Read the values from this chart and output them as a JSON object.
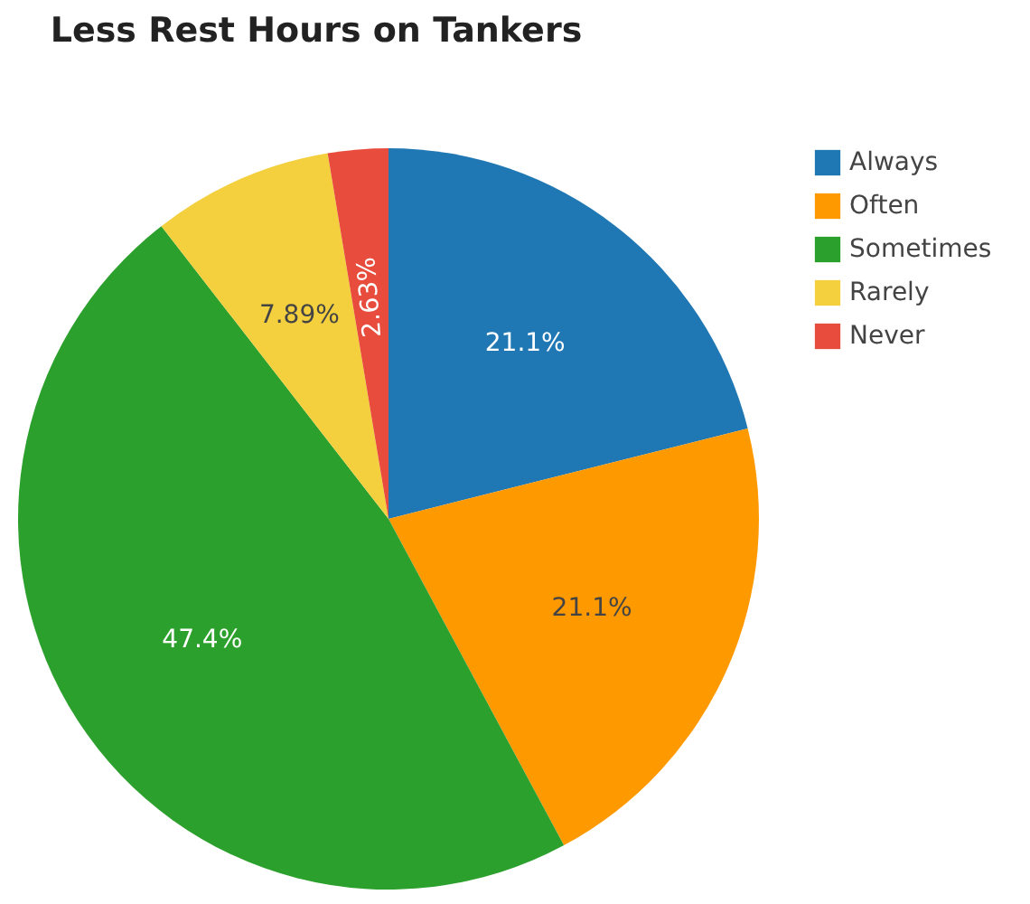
{
  "chart_data": {
    "type": "pie",
    "title": "Less Rest Hours on Tankers",
    "categories": [
      "Always",
      "Often",
      "Sometimes",
      "Rarely",
      "Never"
    ],
    "values": [
      21.1,
      21.1,
      47.4,
      7.89,
      2.63
    ],
    "colors": [
      "#1f77b4",
      "#ff9900",
      "#2ca02c",
      "#f4d03f",
      "#e74c3c"
    ],
    "value_labels": [
      "21.1%",
      "21.1%",
      "47.4%",
      "7.89%",
      "2.63%"
    ],
    "legend": "top right"
  }
}
